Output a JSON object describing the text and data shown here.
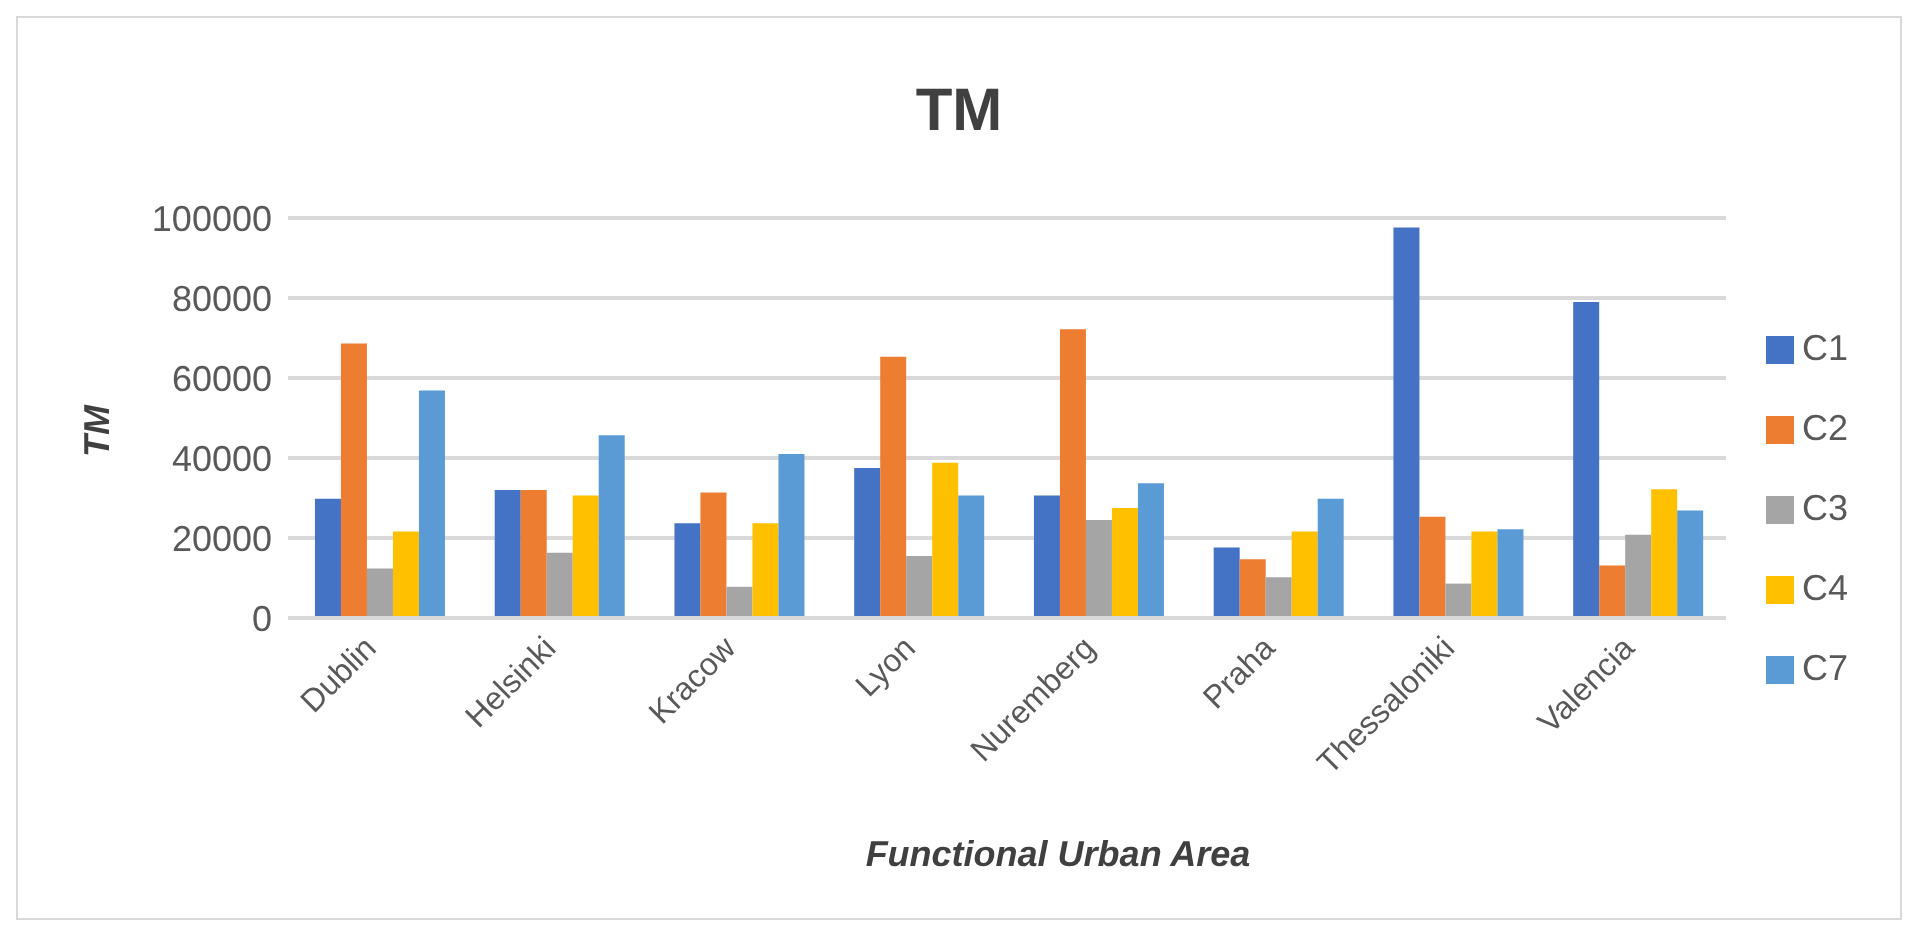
{
  "chart_data": {
    "type": "bar",
    "title": "TM",
    "xlabel": "Functional Urban Area",
    "ylabel": "TM",
    "categories": [
      "Dublin",
      "Helsinki",
      "Kracow",
      "Lyon",
      "Nuremberg",
      "Praha",
      "Thessaloniki",
      "Valencia"
    ],
    "series": [
      {
        "name": "C1",
        "color": "#4472c4",
        "values": [
          29800,
          32000,
          23700,
          37500,
          30600,
          17600,
          97600,
          79000
        ]
      },
      {
        "name": "C2",
        "color": "#ed7d31",
        "values": [
          68600,
          32000,
          31400,
          65300,
          72200,
          14700,
          25300,
          13100
        ]
      },
      {
        "name": "C3",
        "color": "#a5a5a5",
        "values": [
          12400,
          16300,
          7800,
          15500,
          24500,
          10200,
          8600,
          20800
        ]
      },
      {
        "name": "C4",
        "color": "#ffc000",
        "values": [
          21600,
          30600,
          23700,
          38800,
          27500,
          21600,
          21600,
          32200
        ]
      },
      {
        "name": "C7",
        "color": "#5b9bd5",
        "values": [
          56900,
          45700,
          41000,
          30600,
          33700,
          29800,
          22200,
          26900
        ]
      }
    ],
    "ylim": [
      0,
      100000
    ],
    "yticks": [
      0,
      20000,
      40000,
      60000,
      80000,
      100000
    ],
    "grid": "y",
    "legend": "right"
  }
}
